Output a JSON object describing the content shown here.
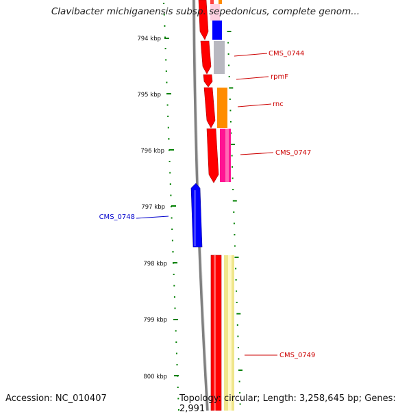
{
  "title": "Clavibacter michiganensis subsp. sepedonicus, complete genom...",
  "footer": {
    "accession": "Accession: NC_010407",
    "summary": "Topology: circular; Length: 3,258,645 bp; Genes: 2,991"
  },
  "axis": {
    "ticks": [
      "794 kbp",
      "795 kbp",
      "796 kbp",
      "797 kbp",
      "798 kbp",
      "799 kbp",
      "800 kbp"
    ],
    "tick_color": "#008000"
  },
  "genes": [
    {
      "name": "CMS_0744",
      "strand": "forward",
      "color": "#cc0000"
    },
    {
      "name": "rpmF",
      "strand": "forward",
      "color": "#cc0000"
    },
    {
      "name": "rnc",
      "strand": "forward",
      "color": "#cc0000"
    },
    {
      "name": "CMS_0747",
      "strand": "forward",
      "color": "#cc0000"
    },
    {
      "name": "CMS_0748",
      "strand": "reverse",
      "color": "#0000cc"
    },
    {
      "name": "CMS_0749",
      "strand": "forward",
      "color": "#cc0000"
    }
  ],
  "colors": {
    "backbone": "#808080",
    "forward_gene": "#ff0000",
    "reverse_gene": "#0000ff"
  }
}
